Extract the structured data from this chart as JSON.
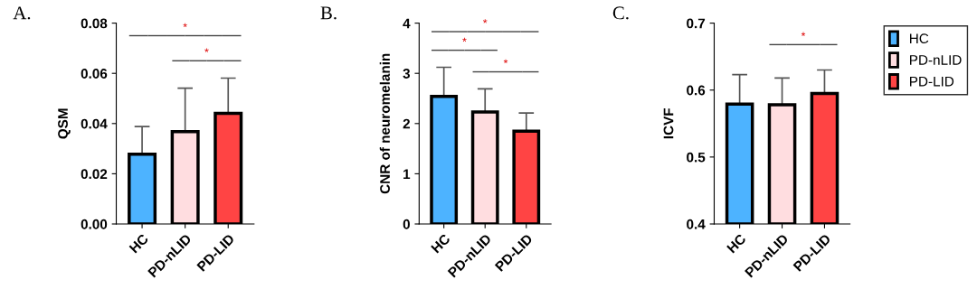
{
  "chart_data": [
    {
      "type": "bar",
      "title": "A.",
      "ylabel": "QSM",
      "categories": [
        "HC",
        "PD-nLID",
        "PD-LID"
      ],
      "grid": false,
      "series": [
        {
          "color": "#4db3ff",
          "values": [
            0.0278,
            null,
            null
          ],
          "errors": [
            [
              0.0278,
              0.0388
            ],
            null,
            null
          ]
        },
        {
          "color": "#ffdde0",
          "values": [
            null,
            0.0368,
            null
          ],
          "errors": [
            null,
            [
              0.0368,
              0.0541
            ],
            null
          ]
        },
        {
          "color": "#ff4444",
          "values": [
            null,
            null,
            0.0441
          ],
          "errors": [
            null,
            null,
            [
              0.0441,
              0.0581
            ]
          ]
        }
      ],
      "ylim": [
        0,
        0.08
      ],
      "yticks": [
        {
          "value": 0,
          "label": "0.00"
        },
        {
          "value": 0.02,
          "label": "0.02"
        },
        {
          "value": 0.04,
          "label": "0.04"
        },
        {
          "value": 0.06,
          "label": "0.06"
        },
        {
          "value": 0.08,
          "label": "0.08"
        }
      ],
      "legend": false,
      "annotations": [
        "*",
        "*"
      ]
    },
    {
      "type": "bar",
      "title": "B.",
      "ylabel": "CNR of neuromelanin",
      "categories": [
        "HC",
        "PD-nLID",
        "PD-LID"
      ],
      "grid": false,
      "series": [
        {
          "color": "#4db3ff",
          "values": [
            2.54,
            null,
            null
          ],
          "errors": [
            [
              2.54,
              3.12
            ],
            null,
            null
          ]
        },
        {
          "color": "#ffdde0",
          "values": [
            null,
            2.23,
            null
          ],
          "errors": [
            null,
            [
              2.23,
              2.69
            ],
            null
          ]
        },
        {
          "color": "#ff4444",
          "values": [
            null,
            null,
            1.85
          ],
          "errors": [
            null,
            null,
            [
              1.85,
              2.21
            ]
          ]
        }
      ],
      "ylim": [
        0,
        4
      ],
      "yticks": [
        0,
        1,
        2,
        3,
        4
      ],
      "legend": false,
      "annotations": [
        "*",
        "*",
        "*"
      ]
    },
    {
      "type": "bar",
      "title": "C.",
      "ylabel": "ICVF",
      "categories": [
        "HC",
        "PD-nLID",
        "PD-LID"
      ],
      "grid": false,
      "series": [
        {
          "name": "HC",
          "color": "#4db3ff",
          "values": [
            0.579,
            null,
            null
          ],
          "errors": [
            [
              0.579,
              0.623
            ],
            null,
            null
          ]
        },
        {
          "name": "PD-nLID",
          "color": "#ffdde0",
          "values": [
            null,
            0.578,
            null
          ],
          "errors": [
            null,
            [
              0.578,
              0.618
            ],
            null
          ]
        },
        {
          "name": "PD-LID",
          "color": "#ff4444",
          "values": [
            null,
            null,
            0.595
          ],
          "errors": [
            null,
            null,
            [
              0.595,
              0.63
            ]
          ]
        }
      ],
      "ylim": [
        0.4,
        0.7
      ],
      "yticks": [
        0.4,
        0.5,
        0.6,
        0.7
      ],
      "legend": "top right",
      "annotations": [
        "*"
      ]
    }
  ]
}
